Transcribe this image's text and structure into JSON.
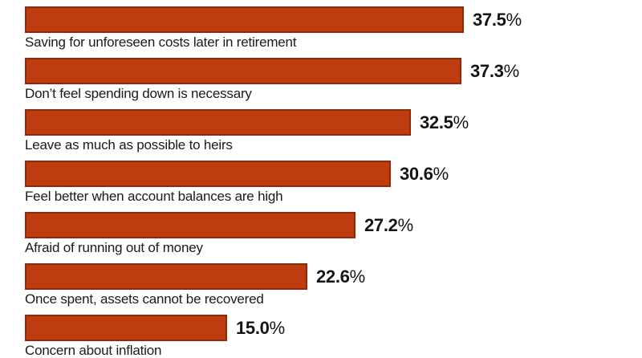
{
  "chart_data": {
    "type": "bar",
    "orientation": "horizontal",
    "title": "",
    "xlabel": "",
    "ylabel": "",
    "xlim": [
      0,
      40
    ],
    "grid": false,
    "legend": false,
    "unit": "%",
    "categories": [
      "Saving for unforeseen costs later in retirement",
      "Don’t feel spending down is necessary",
      "Leave as much as possible to heirs",
      "Feel better when account balances are high",
      "Afraid of running out of money",
      "Once spent, assets cannot be recovered",
      "Concern about inflation"
    ],
    "values": [
      37.5,
      37.3,
      32.5,
      30.6,
      27.2,
      22.6,
      15.0
    ],
    "value_labels": [
      "37.5",
      "37.3",
      "32.5",
      "30.6",
      "27.2",
      "22.6",
      "15.0"
    ],
    "colors": {
      "bar_fill": "#bf3c11",
      "bar_border": "#8e2a0c",
      "value_text": "#141414",
      "category_text": "#1a1a1a",
      "background": "#ffffff"
    }
  }
}
